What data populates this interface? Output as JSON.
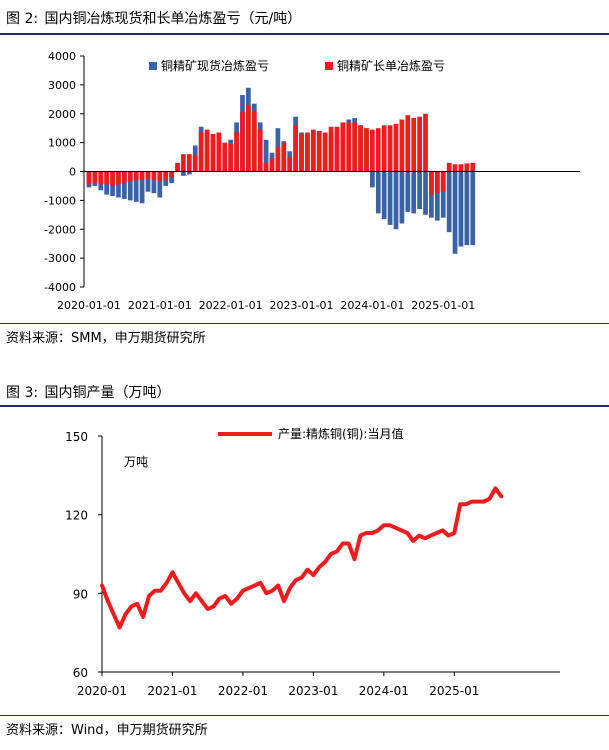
{
  "figures": [
    {
      "number_label": "图 2:",
      "title": "国内铜冶炼现货和长单冶炼盈亏（元/吨）",
      "source": "资料来源：SMM，申万期货研究所"
    },
    {
      "number_label": "图 3:",
      "title": "国内铜产量（万吨）",
      "source": "资料来源：Wind，申万期货研究所"
    }
  ],
  "chart_data": [
    {
      "type": "bar",
      "title": "国内铜冶炼现货和长单冶炼盈亏（元/吨）",
      "ylim": [
        -4000,
        4000
      ],
      "yticks": [
        -4000,
        -3000,
        -2000,
        -1000,
        0,
        1000,
        2000,
        3000,
        4000
      ],
      "xticks": [
        "2020-01-01",
        "2021-01-01",
        "2022-01-01",
        "2023-01-01",
        "2024-01-01",
        "2025-01-01"
      ],
      "start": "2020-01",
      "legend_position": "top-center",
      "colors": {
        "spot": "#3a63a7",
        "long": "#ee1c1c"
      },
      "series": [
        {
          "name": "铜精矿现货冶炼盈亏",
          "values": [
            -550,
            -500,
            -650,
            -800,
            -850,
            -900,
            -950,
            -1000,
            -1050,
            -1100,
            -700,
            -750,
            -900,
            -500,
            -400,
            200,
            -150,
            -100,
            900,
            1550,
            1350,
            1100,
            1050,
            800,
            1100,
            1700,
            2650,
            2900,
            2350,
            1700,
            1100,
            650,
            1500,
            1050,
            700,
            1900,
            1350,
            1300,
            1350,
            1400,
            1300,
            1250,
            1200,
            1600,
            1800,
            1850,
            1600,
            1500,
            -550,
            -1450,
            -1650,
            -1850,
            -2000,
            -1800,
            -1400,
            -1450,
            -1300,
            -1500,
            -1600,
            -1700,
            -1600,
            -2100,
            -2850,
            -2600,
            -2550,
            -2550
          ]
        },
        {
          "name": "铜精矿长单冶炼盈亏",
          "values": [
            -450,
            -400,
            -450,
            -450,
            -500,
            -450,
            -400,
            -350,
            -300,
            -300,
            -250,
            -300,
            -350,
            -300,
            -200,
            300,
            600,
            600,
            550,
            1350,
            1450,
            1300,
            1350,
            1000,
            950,
            1350,
            2050,
            2300,
            2100,
            1450,
            300,
            450,
            850,
            1000,
            500,
            1600,
            1300,
            1350,
            1450,
            1400,
            1350,
            1550,
            1550,
            1700,
            1700,
            1700,
            1600,
            1500,
            1450,
            1500,
            1600,
            1600,
            1650,
            1800,
            1950,
            1850,
            1900,
            2000,
            -800,
            -750,
            -700,
            300,
            250,
            250,
            280,
            300
          ]
        }
      ]
    },
    {
      "type": "line",
      "title": "国内铜产量（万吨）",
      "ylabel": "万吨",
      "ylim": [
        60,
        150
      ],
      "yticks": [
        60,
        90,
        120,
        150
      ],
      "xticks": [
        "2020-01",
        "2021-01",
        "2022-01",
        "2023-01",
        "2024-01",
        "2025-01"
      ],
      "start": "2020-01",
      "legend_position": "top-center",
      "colors": {
        "line": "#ee1c1c"
      },
      "series": [
        {
          "name": "产量:精炼铜(铜):当月值",
          "values": [
            93,
            87,
            82,
            77,
            82,
            85,
            86,
            81,
            89,
            91,
            91,
            94,
            98,
            94,
            90,
            87,
            90,
            87,
            84,
            85,
            88,
            89,
            86,
            88,
            91,
            92,
            93,
            94,
            90,
            91,
            93,
            87,
            92,
            95,
            96,
            99,
            97,
            100,
            102,
            105,
            106,
            109,
            109,
            103,
            112,
            113,
            113,
            114,
            116,
            116,
            115,
            114,
            113,
            110,
            112,
            111,
            112,
            113,
            114,
            112,
            113,
            124,
            124,
            125,
            125,
            125,
            126,
            130,
            127
          ]
        }
      ]
    }
  ]
}
